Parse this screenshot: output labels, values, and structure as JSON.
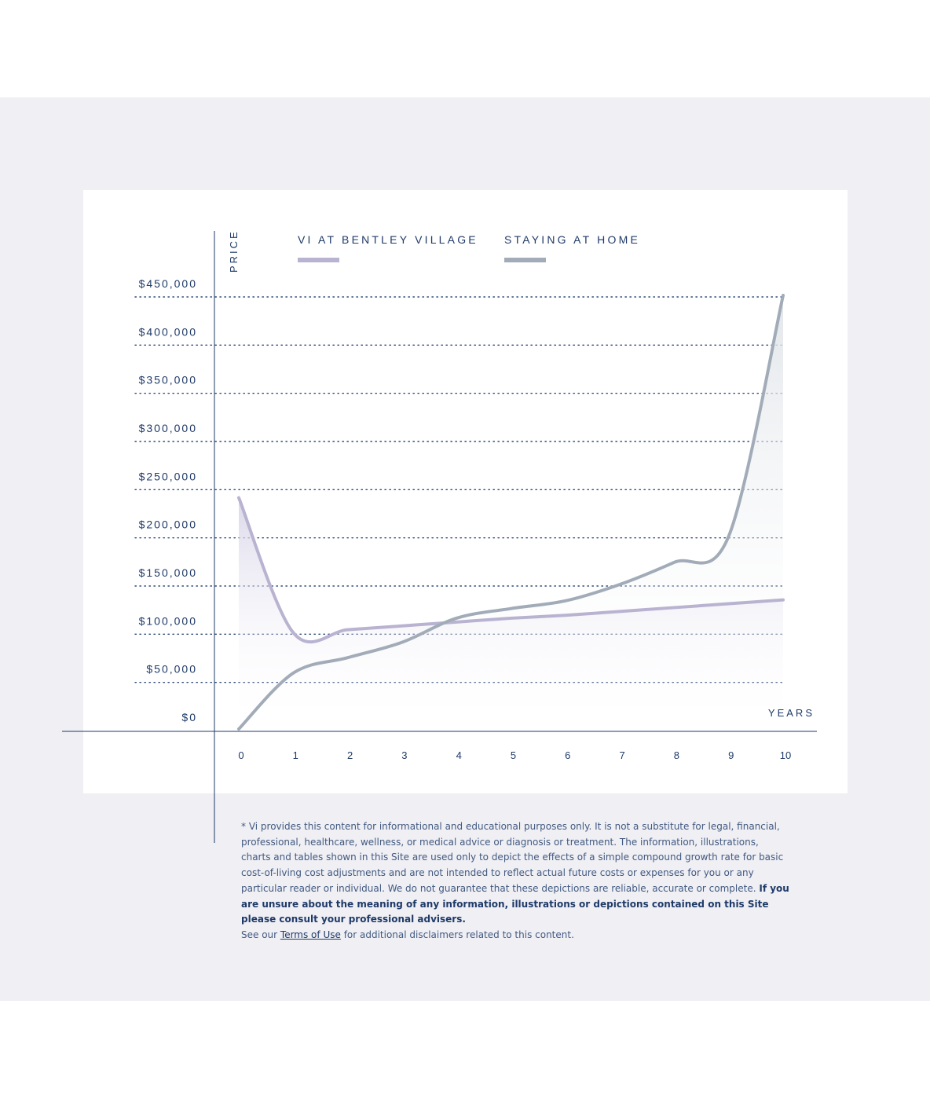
{
  "chart_data": {
    "type": "line",
    "ylabel": "PRICE",
    "xlabel": "YEARS",
    "x": [
      0,
      1,
      2,
      3,
      4,
      5,
      6,
      7,
      8,
      9,
      10
    ],
    "y_ticks": [
      0,
      50000,
      100000,
      150000,
      200000,
      250000,
      300000,
      350000,
      400000,
      450000
    ],
    "y_tick_labels": [
      "$0",
      "$50,000",
      "$100,000",
      "$150,000",
      "$200,000",
      "$250,000",
      "$300,000",
      "$350,000",
      "$400,000",
      "$450,000"
    ],
    "ylim": [
      0,
      450000
    ],
    "xlim": [
      0,
      10
    ],
    "grid": "dotted horizontal",
    "legend_position": "top",
    "series": [
      {
        "name": "VI AT BENTLEY VILLAGE",
        "color": "#b9b3d1",
        "values": [
          240000,
          100000,
          103000,
          107000,
          111000,
          115000,
          118000,
          122000,
          126000,
          130000,
          134000
        ]
      },
      {
        "name": "STAYING AT HOME",
        "color": "#a2acb8",
        "values": [
          0,
          58000,
          74000,
          90000,
          115000,
          125000,
          133000,
          150000,
          173000,
          200000,
          450000
        ]
      }
    ]
  },
  "disclaimer": {
    "text1": "* Vi provides this content for informational and educational purposes only. It is not a substitute for legal, financial, professional, healthcare, wellness, or medical advice or diagnosis or treatment. The information, illustrations, charts and tables shown in this Site are used only to depict the effects of a simple compound growth rate for basic cost-of-living cost adjustments and are not intended to reflect actual future costs or expenses for you or any particular reader or individual. We do not guarantee that these depictions are reliable, accurate or complete.",
    "bold": "If you are unsure about the meaning of any information, illustrations or depictions contained on this Site please consult your professional advisers.",
    "see_prefix": "See our",
    "link_label": "Terms of Use",
    "see_suffix": "for additional disclaimers related to this content."
  }
}
